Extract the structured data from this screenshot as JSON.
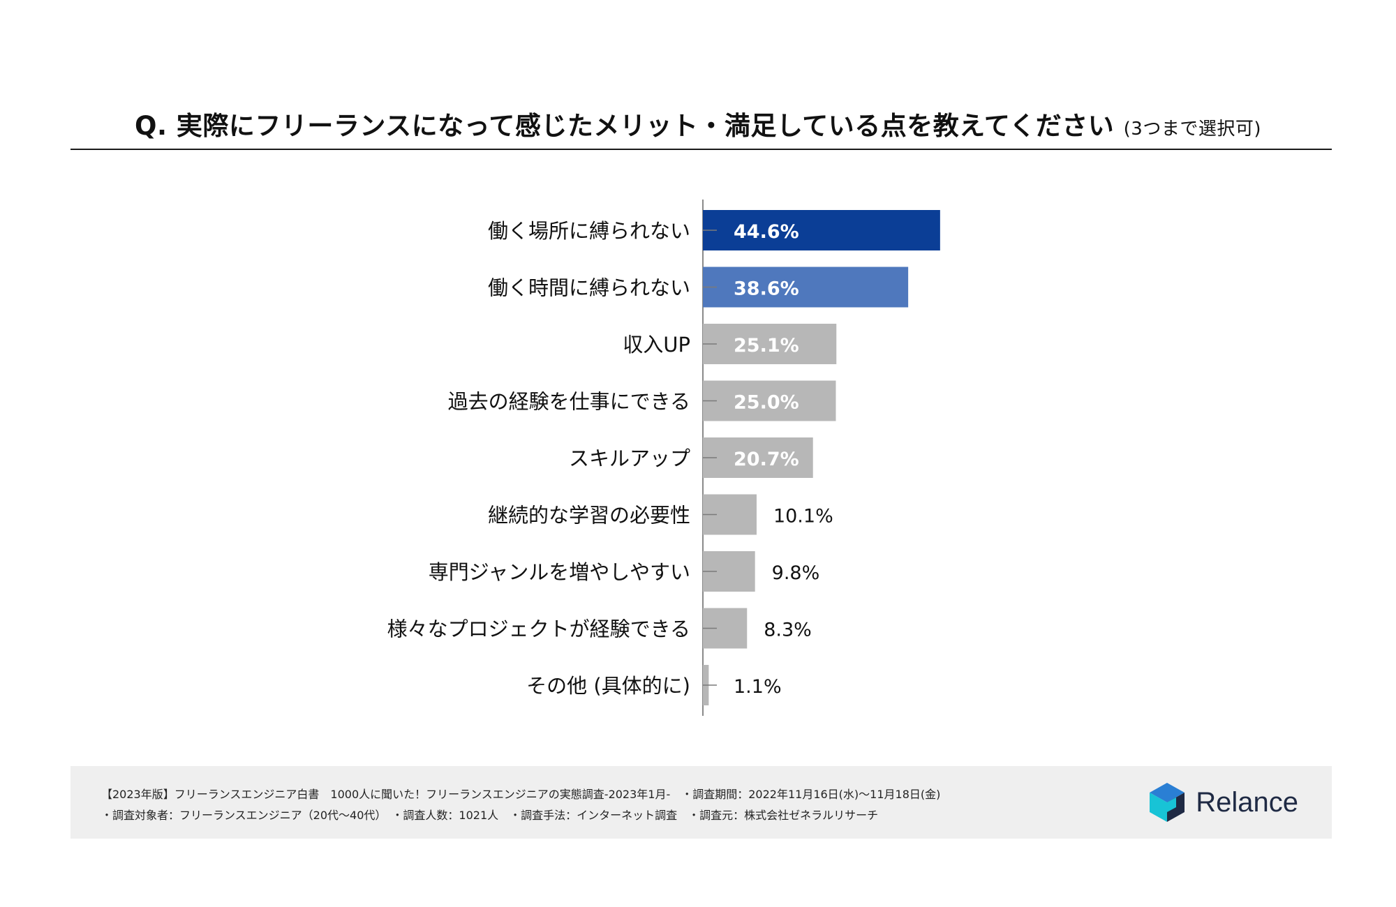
{
  "chart_data": {
    "type": "bar",
    "orientation": "horizontal",
    "title": "Q. 実際にフリーランスになって感じたメリット・満足している点を教えてください",
    "subtitle": "(3つまで選択可)",
    "unit": "%",
    "xlim": [
      0,
      100
    ],
    "categories": [
      "働く場所に縛られない",
      "働く時間に縛られない",
      "収入UP",
      "過去の経験を仕事にできる",
      "スキルアップ",
      "継続的な学習の必要性",
      "専門ジャンルを増やしやすい",
      "様々なプロジェクトが経験できる",
      "その他 (具体的に)"
    ],
    "values": [
      44.6,
      38.6,
      25.1,
      25.0,
      20.7,
      10.1,
      9.8,
      8.3,
      1.1
    ],
    "labels": [
      "44.6%",
      "38.6%",
      "25.1%",
      "25.0%",
      "20.7%",
      "10.1%",
      "9.8%",
      "8.3%",
      "1.1%"
    ],
    "colors": [
      "#0b3e96",
      "#4f78bd",
      "#b7b7b7",
      "#b7b7b7",
      "#b7b7b7",
      "#b7b7b7",
      "#b7b7b7",
      "#b7b7b7",
      "#b7b7b7"
    ]
  },
  "footer": {
    "line1": "【2023年版】フリーランスエンジニア白書　1000人に聞いた！フリーランスエンジニアの実態調査-2023年1月-　・調査期間：2022年11月16日(水)〜11月18日(金)",
    "line2": "・調査対象者：フリーランスエンジニア（20代〜40代）　・調査人数：1021人　・調査手法：インターネット調査　・調査元：株式会社ゼネラルリサーチ"
  },
  "brand": {
    "name": "Relance",
    "colors": {
      "cyan": "#18c3d6",
      "navy": "#1f2a44",
      "blue": "#2a7fd4"
    }
  }
}
